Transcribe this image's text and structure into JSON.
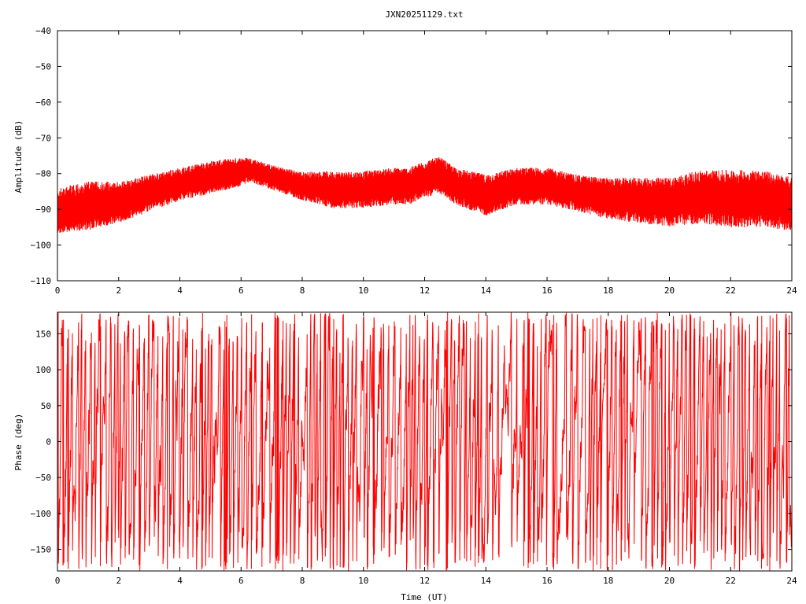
{
  "title": "JXN20251129.txt",
  "line_color": "#ff0000",
  "chart_data": [
    {
      "type": "line",
      "panel": "top",
      "ylabel": "Amplitude (dB)",
      "xlabel": "",
      "xlim": [
        0,
        24
      ],
      "ylim": [
        -110,
        -40
      ],
      "xticks": [
        0,
        2,
        4,
        6,
        8,
        10,
        12,
        14,
        16,
        18,
        20,
        22,
        24
      ],
      "yticks": [
        -40,
        -50,
        -60,
        -70,
        -80,
        -90,
        -100,
        -110
      ],
      "grid": false,
      "series": [
        {
          "x": [
            0,
            1,
            2,
            3,
            4,
            5,
            6,
            6.3,
            7,
            8,
            9,
            10,
            11,
            11.5,
            12,
            12.5,
            13,
            14,
            15,
            16,
            17,
            18,
            19,
            20,
            21,
            22,
            23,
            24
          ],
          "y_upper": [
            -85,
            -83,
            -83,
            -81,
            -79,
            -77,
            -76,
            -76,
            -78,
            -80,
            -80,
            -80,
            -79,
            -79,
            -77,
            -76,
            -79,
            -81,
            -79,
            -79,
            -81,
            -82,
            -82,
            -82,
            -80,
            -80,
            -80,
            -82
          ],
          "y_lower": [
            -96,
            -95,
            -93,
            -90,
            -87,
            -85,
            -83,
            -82,
            -84,
            -87,
            -89,
            -89,
            -88,
            -88,
            -86,
            -85,
            -88,
            -91,
            -88,
            -88,
            -90,
            -92,
            -93,
            -94,
            -93,
            -94,
            -94,
            -95
          ]
        }
      ]
    },
    {
      "type": "line",
      "panel": "bottom",
      "ylabel": "Phase (deg)",
      "xlabel": "Time (UT)",
      "xlim": [
        0,
        24
      ],
      "ylim": [
        -180,
        180
      ],
      "xticks": [
        0,
        2,
        4,
        6,
        8,
        10,
        12,
        14,
        16,
        18,
        20,
        22,
        24
      ],
      "yticks": [
        150,
        100,
        50,
        0,
        -50,
        -100,
        -150
      ],
      "grid": false,
      "series": [
        {
          "description_value_range": [
            -180,
            180
          ],
          "x_start": 0,
          "x_end": 24
        }
      ]
    }
  ]
}
